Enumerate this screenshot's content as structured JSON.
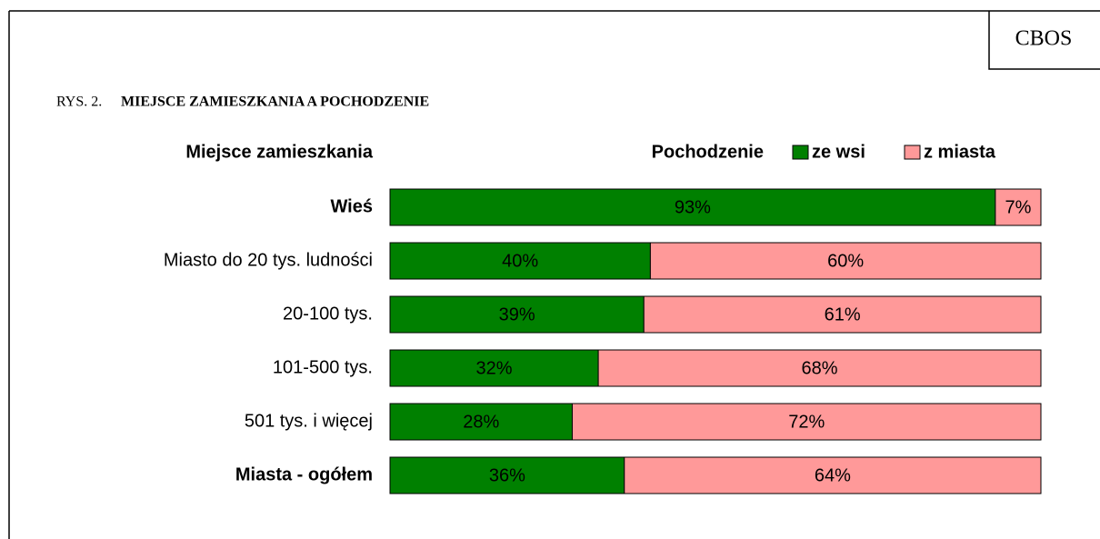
{
  "chart_data": {
    "type": "stacked-barh",
    "source": "CBOS",
    "figure_label": "RYS. 2.",
    "title": "MIEJSCE ZAMIESZKANIA A POCHODZENIE",
    "y_axis_label": "Miejsce zamieszkania",
    "legend_title": "Pochodzenie",
    "categories": [
      "Wieś",
      "Miasto do 20 tys. ludności",
      "20-100 tys.",
      "101-500 tys.",
      "501 tys. i więcej",
      "Miasta - ogółem"
    ],
    "category_bold": [
      true,
      false,
      false,
      false,
      false,
      true
    ],
    "xlim": [
      0,
      100
    ],
    "series": [
      {
        "name": "ze wsi",
        "color": "#008000",
        "label_color": "#ffffff",
        "values": [
          93,
          40,
          39,
          32,
          28,
          36
        ],
        "value_labels": [
          "93%",
          "40%",
          "39%",
          "32%",
          "28%",
          "36%"
        ]
      },
      {
        "name": "z miasta",
        "color": "#ff9999",
        "label_color": "#000000",
        "values": [
          7,
          60,
          61,
          68,
          72,
          64
        ],
        "value_labels": [
          "7%",
          "60%",
          "61%",
          "68%",
          "72%",
          "64%"
        ]
      }
    ]
  }
}
